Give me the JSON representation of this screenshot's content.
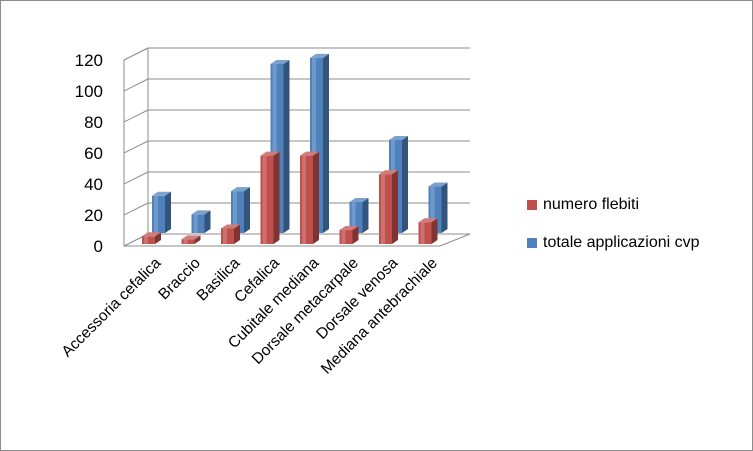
{
  "chart_data": {
    "type": "bar",
    "title": "",
    "xlabel": "",
    "ylabel": "",
    "ylim": [
      0,
      120
    ],
    "y_ticks": [
      "0",
      "20",
      "40",
      "60",
      "80",
      "100",
      "120"
    ],
    "grid": true,
    "style": "3d-clustered-columns",
    "legend_position": "right",
    "categories": [
      "Accessoria cefalica",
      "Braccio",
      "Basilica",
      "Cefalica",
      "Cubitale mediana",
      "Dorsale metacarpale",
      "Dorsale venosa",
      "Mediana antebrachiale"
    ],
    "series": [
      {
        "name": "numero flebiti",
        "color": "#c0504d",
        "values": [
          5,
          3,
          10,
          57,
          57,
          9,
          45,
          14
        ]
      },
      {
        "name": "totale applicazioni cvp",
        "color": "#4f81bd",
        "values": [
          24,
          12,
          27,
          109,
          113,
          20,
          60,
          30
        ]
      }
    ]
  }
}
